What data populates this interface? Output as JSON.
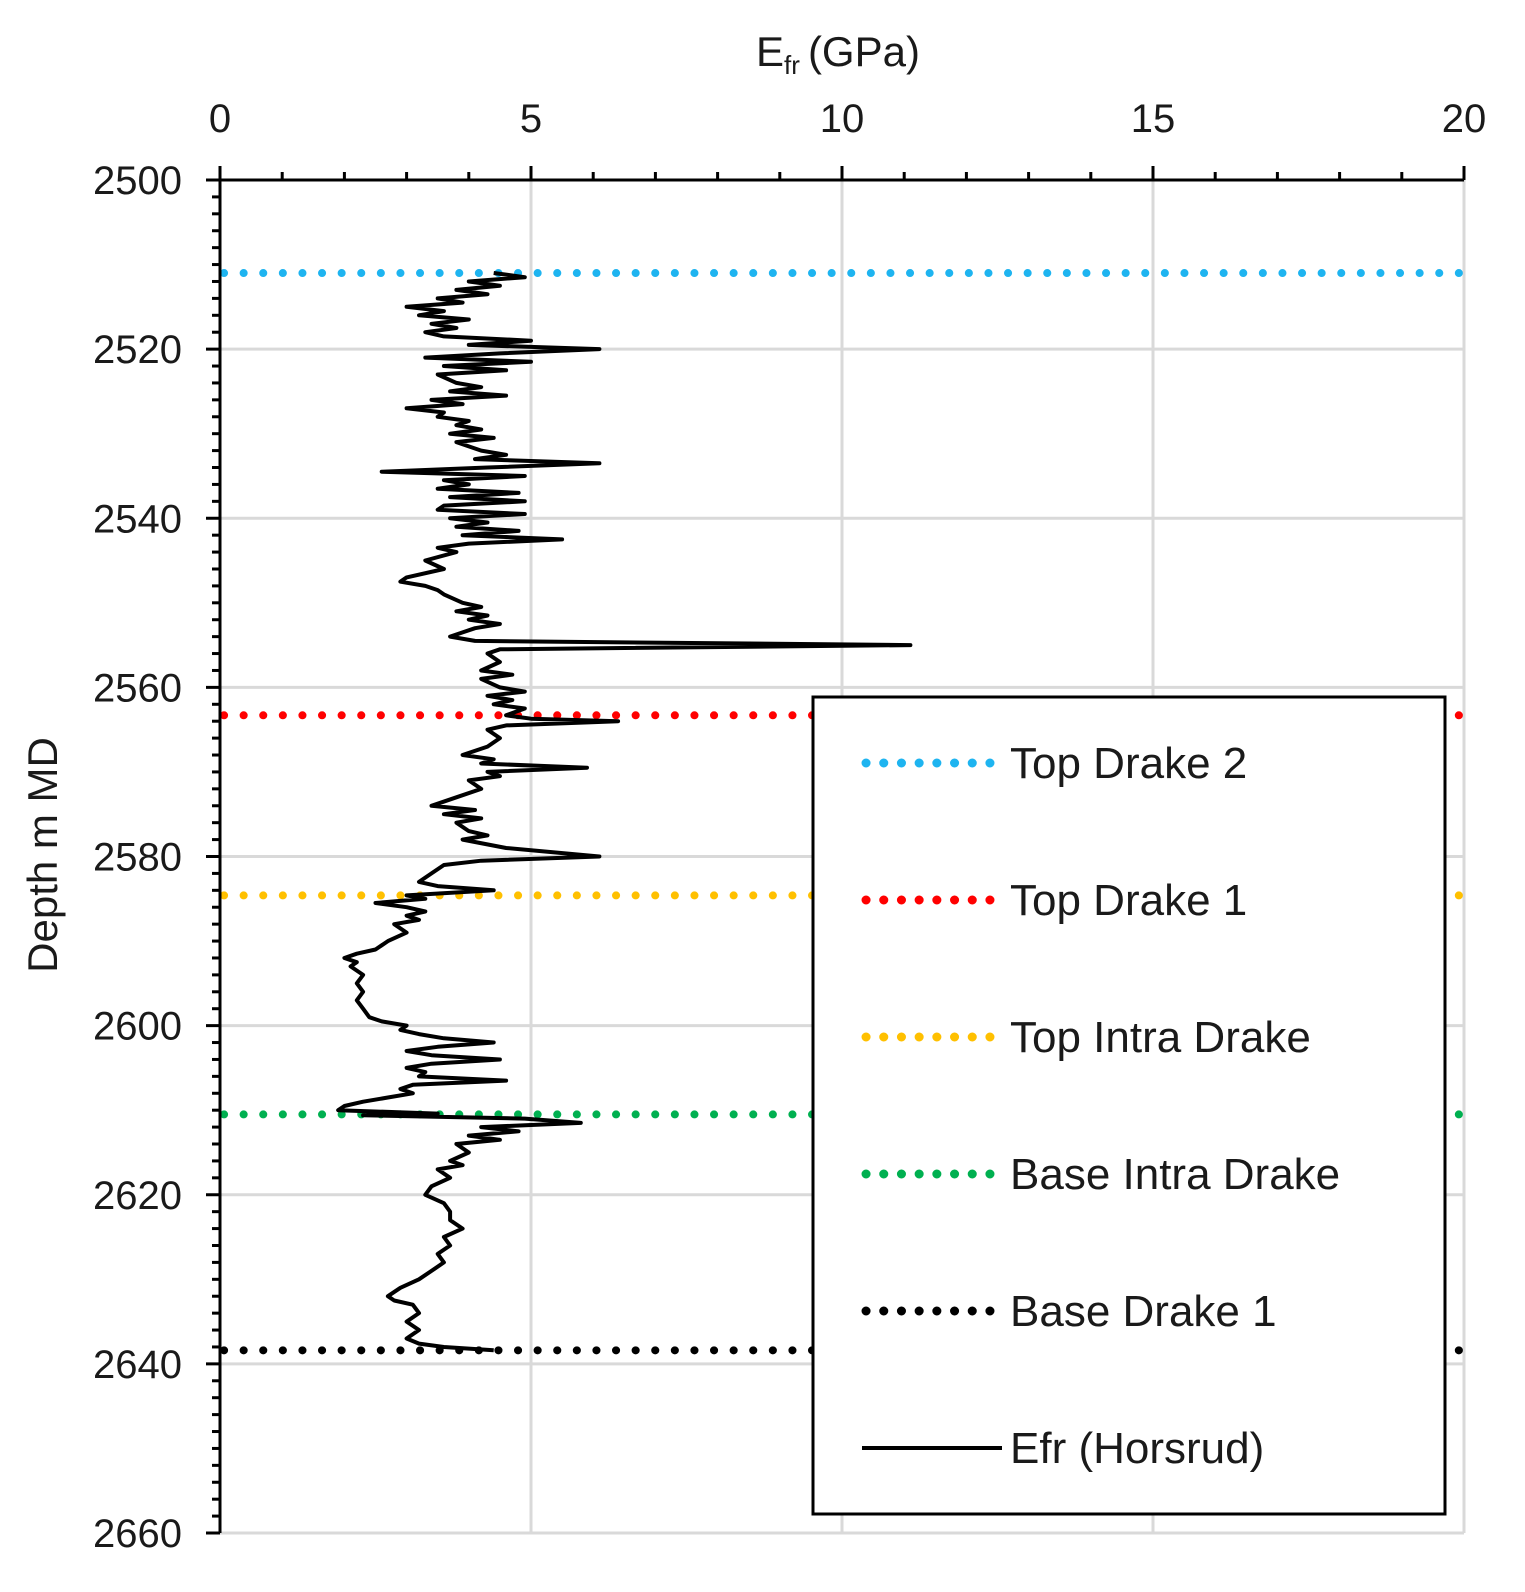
{
  "chart_data": {
    "type": "line",
    "x_axis": {
      "label_main": "E",
      "label_sub": "fr",
      "label_unit": "(GPa)",
      "position": "top",
      "range": [
        0,
        20
      ],
      "ticks": [
        0,
        5,
        10,
        15,
        20
      ],
      "tick_labels": [
        "0",
        "5",
        "10",
        "15",
        "20"
      ],
      "minor_step": 1
    },
    "y_axis": {
      "label": "Depth m MD",
      "reversed": true,
      "range": [
        2500,
        2660
      ],
      "ticks": [
        2500,
        2520,
        2540,
        2560,
        2580,
        2600,
        2620,
        2640,
        2660
      ],
      "tick_labels": [
        "2500",
        "2520",
        "2540",
        "2560",
        "2580",
        "2600",
        "2620",
        "2640",
        "2660"
      ],
      "minor_step": 2
    },
    "grid": true,
    "legend_position": "bottom-right",
    "horizons": [
      {
        "name": "Top Drake 2",
        "depth": 2511,
        "color": "#1eb4f0",
        "style": "dotted"
      },
      {
        "name": "Top Drake 1",
        "depth": 2563.3,
        "color": "#ff0000",
        "style": "dotted"
      },
      {
        "name": "Top Intra Drake",
        "depth": 2584.6,
        "color": "#ffc000",
        "style": "dotted"
      },
      {
        "name": "Base Intra Drake",
        "depth": 2610.5,
        "color": "#00b050",
        "style": "dotted"
      },
      {
        "name": "Base Drake 1",
        "depth": 2638.4,
        "color": "#000000",
        "style": "dotted"
      }
    ],
    "series": [
      {
        "name": "Efr (Horsrud)",
        "color": "#000000",
        "style": "solid",
        "points": [
          [
            4.4,
            2511
          ],
          [
            4.9,
            2511.5
          ],
          [
            4.0,
            2512
          ],
          [
            4.5,
            2512.5
          ],
          [
            3.8,
            2513
          ],
          [
            4.3,
            2513.5
          ],
          [
            3.5,
            2514
          ],
          [
            3.9,
            2514.5
          ],
          [
            3.0,
            2515
          ],
          [
            3.6,
            2515.5
          ],
          [
            3.2,
            2516
          ],
          [
            4.0,
            2516.5
          ],
          [
            3.4,
            2517
          ],
          [
            3.8,
            2517.5
          ],
          [
            3.3,
            2518
          ],
          [
            3.6,
            2518.5
          ],
          [
            5.0,
            2519
          ],
          [
            4.0,
            2519.5
          ],
          [
            6.1,
            2520
          ],
          [
            4.5,
            2520.5
          ],
          [
            3.3,
            2521
          ],
          [
            5.0,
            2521.5
          ],
          [
            3.6,
            2522
          ],
          [
            4.6,
            2522.5
          ],
          [
            3.5,
            2523
          ],
          [
            3.8,
            2524
          ],
          [
            4.2,
            2524.5
          ],
          [
            3.7,
            2525
          ],
          [
            4.6,
            2525.5
          ],
          [
            3.4,
            2526
          ],
          [
            3.9,
            2526.5
          ],
          [
            3.0,
            2527
          ],
          [
            3.6,
            2527.5
          ],
          [
            3.5,
            2528
          ],
          [
            4.0,
            2528.5
          ],
          [
            3.8,
            2529
          ],
          [
            4.2,
            2529.5
          ],
          [
            3.7,
            2530
          ],
          [
            4.4,
            2530.5
          ],
          [
            3.8,
            2531
          ],
          [
            4.2,
            2532
          ],
          [
            4.6,
            2532.5
          ],
          [
            4.1,
            2533
          ],
          [
            6.1,
            2533.5
          ],
          [
            4.3,
            2534
          ],
          [
            2.6,
            2534.5
          ],
          [
            4.9,
            2535
          ],
          [
            3.6,
            2535.5
          ],
          [
            4.0,
            2536
          ],
          [
            3.5,
            2536.5
          ],
          [
            4.8,
            2537
          ],
          [
            3.7,
            2537.5
          ],
          [
            4.9,
            2538
          ],
          [
            3.6,
            2538.5
          ],
          [
            3.5,
            2539
          ],
          [
            4.9,
            2539.5
          ],
          [
            3.7,
            2540
          ],
          [
            4.3,
            2540.5
          ],
          [
            3.8,
            2541
          ],
          [
            4.8,
            2541.5
          ],
          [
            3.9,
            2542
          ],
          [
            5.5,
            2542.5
          ],
          [
            4.0,
            2543
          ],
          [
            3.5,
            2543.5
          ],
          [
            3.8,
            2544
          ],
          [
            3.3,
            2545
          ],
          [
            3.6,
            2546
          ],
          [
            3.0,
            2547
          ],
          [
            2.9,
            2547.5
          ],
          [
            3.3,
            2548
          ],
          [
            3.5,
            2548.5
          ],
          [
            3.6,
            2549
          ],
          [
            3.9,
            2550
          ],
          [
            4.2,
            2550.5
          ],
          [
            3.8,
            2551
          ],
          [
            4.3,
            2551.5
          ],
          [
            4.0,
            2552
          ],
          [
            4.5,
            2552.5
          ],
          [
            4.1,
            2553
          ],
          [
            3.9,
            2553.5
          ],
          [
            3.7,
            2554
          ],
          [
            4.1,
            2554.5
          ],
          [
            11.1,
            2555
          ],
          [
            4.5,
            2555.5
          ],
          [
            4.3,
            2556
          ],
          [
            4.5,
            2557
          ],
          [
            4.2,
            2558
          ],
          [
            4.7,
            2558.5
          ],
          [
            4.2,
            2559
          ],
          [
            4.5,
            2560
          ],
          [
            4.9,
            2560.5
          ],
          [
            4.3,
            2561
          ],
          [
            4.7,
            2561.5
          ],
          [
            4.4,
            2562
          ],
          [
            4.9,
            2562.5
          ],
          [
            4.6,
            2563.3
          ],
          [
            5.0,
            2563.7
          ],
          [
            6.4,
            2564
          ],
          [
            4.6,
            2564.5
          ],
          [
            4.3,
            2565
          ],
          [
            4.5,
            2566
          ],
          [
            4.3,
            2567
          ],
          [
            3.9,
            2568
          ],
          [
            4.4,
            2568.5
          ],
          [
            4.2,
            2569
          ],
          [
            5.9,
            2569.5
          ],
          [
            4.3,
            2570
          ],
          [
            4.5,
            2570.5
          ],
          [
            4.0,
            2571
          ],
          [
            4.2,
            2572
          ],
          [
            3.8,
            2573
          ],
          [
            3.4,
            2574
          ],
          [
            4.1,
            2574.5
          ],
          [
            3.6,
            2575
          ],
          [
            4.2,
            2575.5
          ],
          [
            3.8,
            2576
          ],
          [
            4.0,
            2577
          ],
          [
            4.3,
            2577.5
          ],
          [
            3.9,
            2578
          ],
          [
            4.6,
            2579
          ],
          [
            6.1,
            2580
          ],
          [
            4.2,
            2580.5
          ],
          [
            3.6,
            2581
          ],
          [
            3.4,
            2582
          ],
          [
            3.2,
            2583
          ],
          [
            3.5,
            2583.5
          ],
          [
            4.4,
            2584
          ],
          [
            3.0,
            2584.6
          ],
          [
            3.3,
            2585
          ],
          [
            2.5,
            2585.5
          ],
          [
            3.0,
            2586
          ],
          [
            3.3,
            2586.5
          ],
          [
            3.0,
            2587
          ],
          [
            3.2,
            2587.5
          ],
          [
            2.8,
            2588
          ],
          [
            3.0,
            2589
          ],
          [
            2.7,
            2590
          ],
          [
            2.5,
            2591
          ],
          [
            2.2,
            2591.5
          ],
          [
            2.0,
            2592
          ],
          [
            2.2,
            2592.5
          ],
          [
            2.1,
            2593
          ],
          [
            2.3,
            2594
          ],
          [
            2.2,
            2595
          ],
          [
            2.3,
            2596
          ],
          [
            2.2,
            2597
          ],
          [
            2.3,
            2598
          ],
          [
            2.4,
            2599
          ],
          [
            2.6,
            2599.5
          ],
          [
            3.0,
            2600
          ],
          [
            2.9,
            2600.5
          ],
          [
            3.2,
            2601
          ],
          [
            3.6,
            2601.5
          ],
          [
            4.4,
            2602
          ],
          [
            3.5,
            2602.5
          ],
          [
            3.0,
            2603
          ],
          [
            3.4,
            2603.5
          ],
          [
            4.5,
            2604
          ],
          [
            3.4,
            2604.5
          ],
          [
            3.0,
            2605
          ],
          [
            3.3,
            2605.5
          ],
          [
            3.2,
            2606
          ],
          [
            4.6,
            2606.5
          ],
          [
            3.1,
            2607
          ],
          [
            2.9,
            2607.5
          ],
          [
            3.1,
            2608
          ],
          [
            2.7,
            2608.5
          ],
          [
            2.3,
            2609
          ],
          [
            2.0,
            2609.5
          ],
          [
            1.9,
            2610
          ],
          [
            3.5,
            2610.4
          ],
          [
            2.3,
            2610.6
          ],
          [
            4.9,
            2611
          ],
          [
            5.8,
            2611.5
          ],
          [
            4.2,
            2612
          ],
          [
            4.8,
            2612.5
          ],
          [
            4.0,
            2613
          ],
          [
            4.5,
            2613.5
          ],
          [
            3.8,
            2614
          ],
          [
            4.0,
            2615
          ],
          [
            3.7,
            2616
          ],
          [
            3.9,
            2616.5
          ],
          [
            3.5,
            2617
          ],
          [
            3.7,
            2618
          ],
          [
            3.4,
            2619
          ],
          [
            3.3,
            2620
          ],
          [
            3.6,
            2621
          ],
          [
            3.7,
            2622
          ],
          [
            3.7,
            2623
          ],
          [
            3.9,
            2624
          ],
          [
            3.6,
            2625
          ],
          [
            3.7,
            2626
          ],
          [
            3.5,
            2627
          ],
          [
            3.6,
            2628
          ],
          [
            3.4,
            2629
          ],
          [
            3.2,
            2630
          ],
          [
            2.9,
            2631
          ],
          [
            2.7,
            2632
          ],
          [
            2.8,
            2632.5
          ],
          [
            3.1,
            2633
          ],
          [
            3.2,
            2634
          ],
          [
            3.0,
            2635
          ],
          [
            3.2,
            2636
          ],
          [
            3.0,
            2637
          ],
          [
            3.2,
            2637.6
          ],
          [
            3.6,
            2638
          ],
          [
            4.4,
            2638.4
          ]
        ]
      }
    ]
  }
}
